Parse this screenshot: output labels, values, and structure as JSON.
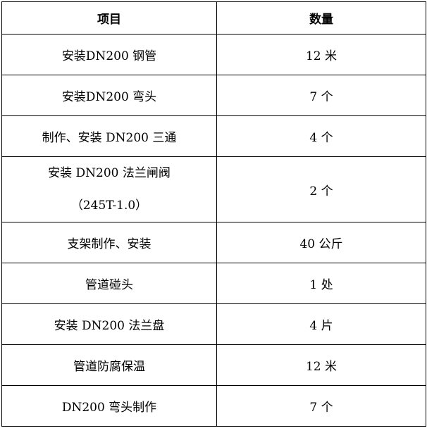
{
  "headers": {
    "item": "项目",
    "quantity": "数量"
  },
  "rows": [
    {
      "item": "安装DN200 钢管",
      "quantity": "12 米"
    },
    {
      "item": "安装DN200 弯头",
      "quantity": "7 个"
    },
    {
      "item": "制作、安装 DN200 三通",
      "quantity": "4 个"
    },
    {
      "item": "安装 DN200 法兰闸阀",
      "item_line2": "（245T-1.0）",
      "quantity": "2 个"
    },
    {
      "item": "支架制作、安装",
      "quantity": "40 公斤"
    },
    {
      "item": "管道碰头",
      "quantity": "1 处"
    },
    {
      "item": "安装 DN200 法兰盘",
      "quantity": "4 片"
    },
    {
      "item": "管道防腐保温",
      "quantity": "12 米"
    },
    {
      "item": "DN200 弯头制作",
      "quantity": "7 个"
    }
  ]
}
